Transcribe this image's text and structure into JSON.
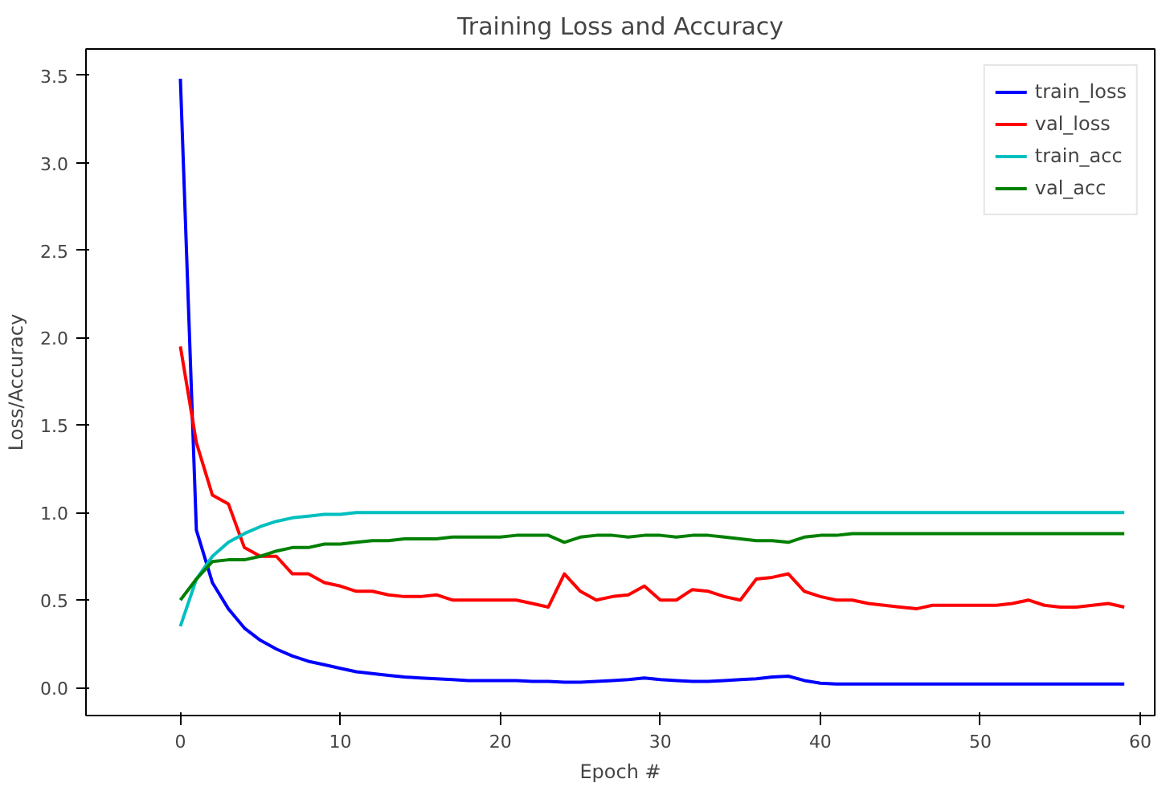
{
  "chart_data": {
    "type": "line",
    "title": "Training Loss and Accuracy",
    "xlabel": "Epoch #",
    "ylabel": "Loss/Accuracy",
    "x": [
      0,
      1,
      2,
      3,
      4,
      5,
      6,
      7,
      8,
      9,
      10,
      11,
      12,
      13,
      14,
      15,
      16,
      17,
      18,
      19,
      20,
      21,
      22,
      23,
      24,
      25,
      26,
      27,
      28,
      29,
      30,
      31,
      32,
      33,
      34,
      35,
      36,
      37,
      38,
      39,
      40,
      41,
      42,
      43,
      44,
      45,
      46,
      47,
      48,
      49,
      50,
      51,
      52,
      53,
      54,
      55,
      56,
      57,
      58,
      59
    ],
    "series": [
      {
        "name": "train_loss",
        "color": "#0000ff",
        "values": [
          3.48,
          0.9,
          0.6,
          0.45,
          0.34,
          0.27,
          0.22,
          0.18,
          0.15,
          0.13,
          0.11,
          0.09,
          0.08,
          0.07,
          0.06,
          0.055,
          0.05,
          0.045,
          0.04,
          0.04,
          0.04,
          0.04,
          0.035,
          0.035,
          0.03,
          0.03,
          0.035,
          0.04,
          0.045,
          0.055,
          0.045,
          0.04,
          0.035,
          0.035,
          0.04,
          0.045,
          0.05,
          0.06,
          0.065,
          0.04,
          0.025,
          0.02,
          0.02,
          0.02,
          0.02,
          0.02,
          0.02,
          0.02,
          0.02,
          0.02,
          0.02,
          0.02,
          0.02,
          0.02,
          0.02,
          0.02,
          0.02,
          0.02,
          0.02,
          0.02
        ]
      },
      {
        "name": "val_loss",
        "color": "#ff0000",
        "values": [
          1.95,
          1.4,
          1.1,
          1.05,
          0.8,
          0.75,
          0.75,
          0.65,
          0.65,
          0.6,
          0.58,
          0.55,
          0.55,
          0.53,
          0.52,
          0.52,
          0.53,
          0.5,
          0.5,
          0.5,
          0.5,
          0.5,
          0.48,
          0.46,
          0.65,
          0.55,
          0.5,
          0.52,
          0.53,
          0.58,
          0.5,
          0.5,
          0.56,
          0.55,
          0.52,
          0.5,
          0.62,
          0.63,
          0.65,
          0.55,
          0.52,
          0.5,
          0.5,
          0.48,
          0.47,
          0.46,
          0.45,
          0.47,
          0.47,
          0.47,
          0.47,
          0.47,
          0.48,
          0.5,
          0.47,
          0.46,
          0.46,
          0.47,
          0.48,
          0.46
        ]
      },
      {
        "name": "train_acc",
        "color": "#00bfbf",
        "values": [
          0.35,
          0.62,
          0.75,
          0.83,
          0.88,
          0.92,
          0.95,
          0.97,
          0.98,
          0.99,
          0.99,
          1.0,
          1.0,
          1.0,
          1.0,
          1.0,
          1.0,
          1.0,
          1.0,
          1.0,
          1.0,
          1.0,
          1.0,
          1.0,
          1.0,
          1.0,
          1.0,
          1.0,
          1.0,
          1.0,
          1.0,
          1.0,
          1.0,
          1.0,
          1.0,
          1.0,
          1.0,
          1.0,
          1.0,
          1.0,
          1.0,
          1.0,
          1.0,
          1.0,
          1.0,
          1.0,
          1.0,
          1.0,
          1.0,
          1.0,
          1.0,
          1.0,
          1.0,
          1.0,
          1.0,
          1.0,
          1.0,
          1.0,
          1.0,
          1.0
        ]
      },
      {
        "name": "val_acc",
        "color": "#008000",
        "values": [
          0.5,
          0.62,
          0.72,
          0.73,
          0.73,
          0.75,
          0.78,
          0.8,
          0.8,
          0.82,
          0.82,
          0.83,
          0.84,
          0.84,
          0.85,
          0.85,
          0.85,
          0.86,
          0.86,
          0.86,
          0.86,
          0.87,
          0.87,
          0.87,
          0.83,
          0.86,
          0.87,
          0.87,
          0.86,
          0.87,
          0.87,
          0.86,
          0.87,
          0.87,
          0.86,
          0.85,
          0.84,
          0.84,
          0.83,
          0.86,
          0.87,
          0.87,
          0.88,
          0.88,
          0.88,
          0.88,
          0.88,
          0.88,
          0.88,
          0.88,
          0.88,
          0.88,
          0.88,
          0.88,
          0.88,
          0.88,
          0.88,
          0.88,
          0.88,
          0.88
        ]
      }
    ],
    "xlim": [
      -5.9,
      60.9
    ],
    "ylim": [
      -0.16,
      3.65
    ],
    "xticks": [
      0,
      10,
      20,
      30,
      40,
      50,
      60
    ],
    "yticks": [
      {
        "value": 0,
        "label": "0.0"
      },
      {
        "value": 0.5,
        "label": "0.5"
      },
      {
        "value": 1,
        "label": "1.0"
      },
      {
        "value": 1.5,
        "label": "1.5"
      },
      {
        "value": 2,
        "label": "2.0"
      },
      {
        "value": 2.5,
        "label": "2.5"
      },
      {
        "value": 3,
        "label": "3.0"
      },
      {
        "value": 3.5,
        "label": "3.5"
      }
    ],
    "legend": "top right",
    "line_style": "solid"
  }
}
